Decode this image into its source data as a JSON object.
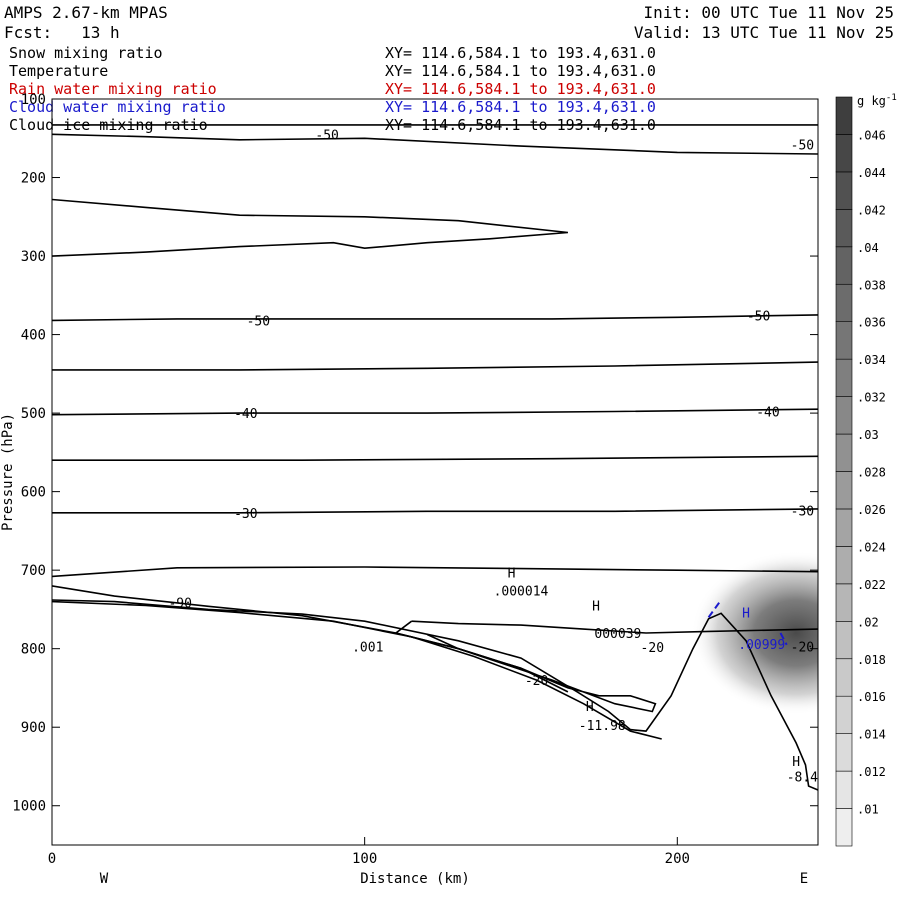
{
  "header": {
    "title": "AMPS 2.67-km MPAS",
    "forecast": "Fcst:   13 h",
    "init": "Init: 00 UTC Tue 11 Nov 25",
    "valid": "Valid: 13 UTC Tue 11 Nov 25"
  },
  "legend": [
    {
      "label": "Snow mixing ratio",
      "xy": "XY= 114.6,584.1 to 193.4,631.0",
      "color": "#000000"
    },
    {
      "label": "Temperature",
      "xy": "XY= 114.6,584.1 to 193.4,631.0",
      "color": "#000000"
    },
    {
      "label": "Rain water mixing ratio",
      "xy": "XY= 114.6,584.1 to 193.4,631.0",
      "color": "#cc0000"
    },
    {
      "label": "Cloud water mixing ratio",
      "xy": "XY= 114.6,584.1 to 193.4,631.0",
      "color": "#1a1acc"
    },
    {
      "label": "Cloud ice mixing ratio",
      "xy": "XY= 114.6,584.1 to 193.4,631.0",
      "color": "#000000"
    }
  ],
  "chart_data": {
    "type": "contour",
    "xlabel": "Distance (km)",
    "ylabel": "Pressure (hPa)",
    "xlim": [
      0,
      245
    ],
    "ylim": [
      1050,
      100
    ],
    "x_ticks": [
      0,
      100,
      200
    ],
    "y_ticks": [
      100,
      200,
      300,
      400,
      500,
      600,
      700,
      800,
      900,
      1000
    ],
    "x_end_labels": {
      "left": "W",
      "right": "E"
    },
    "colorbar": {
      "unit": "g kg",
      "unit_exp": "-1",
      "ticks": [
        ".01",
        ".012",
        ".014",
        ".016",
        ".018",
        ".02",
        ".022",
        ".024",
        ".026",
        ".028",
        ".03",
        ".032",
        ".034",
        ".036",
        ".038",
        ".04",
        ".042",
        ".044",
        ".046"
      ],
      "min": 0.009,
      "max": 0.048
    },
    "contour_labels": [
      {
        "text": "-50",
        "x": 88,
        "p": 145
      },
      {
        "text": "-50",
        "x": 240,
        "p": 158
      },
      {
        "text": "-50",
        "x": 66,
        "p": 382
      },
      {
        "text": "-50",
        "x": 226,
        "p": 376
      },
      {
        "text": "-40",
        "x": 62,
        "p": 500
      },
      {
        "text": "-40",
        "x": 229,
        "p": 498
      },
      {
        "text": "-30",
        "x": 62,
        "p": 627
      },
      {
        "text": "-30",
        "x": 240,
        "p": 624
      },
      {
        "text": "-90",
        "x": 41,
        "p": 741
      },
      {
        "text": ".001",
        "x": 101,
        "p": 797
      },
      {
        "text": "-20",
        "x": 192,
        "p": 798
      },
      {
        "text": "-20",
        "x": 155,
        "p": 840
      },
      {
        "text": "-20",
        "x": 240,
        "p": 797
      },
      {
        "text": "H",
        "x": 147,
        "p": 703,
        "color": "#000000"
      },
      {
        "text": ".000014",
        "x": 150,
        "p": 726,
        "color": "#000000"
      },
      {
        "text": "H",
        "x": 174,
        "p": 745,
        "color": "#000000"
      },
      {
        "text": "000039",
        "x": 181,
        "p": 780,
        "color": "#000000"
      },
      {
        "text": "H",
        "x": 222,
        "p": 754,
        "color": "#1a1acc"
      },
      {
        "text": ".00999",
        "x": 227,
        "p": 794,
        "color": "#1a1acc"
      },
      {
        "text": "H",
        "x": 172,
        "p": 873,
        "color": "#000000"
      },
      {
        "text": "-11.98",
        "x": 176,
        "p": 897,
        "color": "#000000"
      },
      {
        "text": "H",
        "x": 238,
        "p": 943,
        "color": "#000000"
      },
      {
        "text": "-8.4",
        "x": 240,
        "p": 963,
        "color": "#000000"
      }
    ],
    "series": [
      {
        "points": [
          [
            0,
            145
          ],
          [
            30,
            148
          ],
          [
            60,
            152
          ],
          [
            100,
            150
          ],
          [
            150,
            160
          ],
          [
            200,
            168
          ],
          [
            245,
            170
          ]
        ]
      },
      {
        "points": [
          [
            0,
            133
          ],
          [
            80,
            133
          ],
          [
            160,
            133
          ],
          [
            245,
            133
          ]
        ]
      },
      {
        "points": [
          [
            0,
            228
          ],
          [
            30,
            238
          ],
          [
            60,
            248
          ],
          [
            100,
            250
          ],
          [
            130,
            255
          ],
          [
            165,
            270
          ],
          [
            140,
            278
          ],
          [
            120,
            283
          ],
          [
            100,
            290
          ],
          [
            90,
            283
          ],
          [
            60,
            288
          ],
          [
            30,
            295
          ],
          [
            0,
            300
          ]
        ]
      },
      {
        "points": [
          [
            0,
            382
          ],
          [
            40,
            380
          ],
          [
            80,
            380
          ],
          [
            120,
            380
          ],
          [
            160,
            380
          ],
          [
            200,
            378
          ],
          [
            245,
            375
          ]
        ]
      },
      {
        "points": [
          [
            0,
            445
          ],
          [
            60,
            445
          ],
          [
            120,
            443
          ],
          [
            180,
            440
          ],
          [
            245,
            435
          ]
        ]
      },
      {
        "points": [
          [
            0,
            502
          ],
          [
            60,
            500
          ],
          [
            120,
            500
          ],
          [
            180,
            498
          ],
          [
            245,
            495
          ]
        ]
      },
      {
        "points": [
          [
            0,
            560
          ],
          [
            80,
            560
          ],
          [
            160,
            558
          ],
          [
            245,
            555
          ]
        ]
      },
      {
        "points": [
          [
            0,
            627
          ],
          [
            60,
            627
          ],
          [
            120,
            625
          ],
          [
            180,
            625
          ],
          [
            245,
            622
          ]
        ]
      },
      {
        "points": [
          [
            0,
            708
          ],
          [
            40,
            697
          ],
          [
            100,
            696
          ],
          [
            150,
            698
          ],
          [
            200,
            700
          ],
          [
            245,
            702
          ]
        ]
      },
      {
        "points": [
          [
            0,
            738
          ],
          [
            20,
            740
          ],
          [
            50,
            750
          ],
          [
            80,
            756
          ],
          [
            100,
            765
          ],
          [
            130,
            790
          ],
          [
            150,
            812
          ],
          [
            168,
            855
          ],
          [
            178,
            880
          ],
          [
            185,
            903
          ],
          [
            190,
            905
          ],
          [
            198,
            860
          ],
          [
            205,
            800
          ],
          [
            210,
            762
          ],
          [
            214,
            755
          ],
          [
            222,
            790
          ],
          [
            230,
            860
          ],
          [
            238,
            920
          ],
          [
            241,
            948
          ],
          [
            242,
            975
          ],
          [
            245,
            980
          ]
        ]
      },
      {
        "points": [
          [
            0,
            740
          ],
          [
            30,
            745
          ],
          [
            60,
            754
          ],
          [
            90,
            765
          ],
          [
            115,
            785
          ],
          [
            135,
            810
          ],
          [
            155,
            840
          ],
          [
            170,
            870
          ],
          [
            185,
            905
          ],
          [
            195,
            915
          ]
        ]
      },
      {
        "points": [
          [
            0,
            720
          ],
          [
            20,
            733
          ],
          [
            50,
            746
          ],
          [
            80,
            758
          ],
          [
            110,
            780
          ],
          [
            130,
            800
          ],
          [
            150,
            825
          ],
          [
            165,
            855
          ]
        ]
      },
      {
        "points": [
          [
            115,
            765
          ],
          [
            130,
            768
          ],
          [
            150,
            770
          ],
          [
            170,
            775
          ],
          [
            190,
            780
          ],
          [
            210,
            778
          ],
          [
            245,
            775
          ]
        ]
      },
      {
        "points": [
          [
            115,
            765
          ],
          [
            110,
            780
          ],
          [
            130,
            800
          ],
          [
            160,
            840
          ],
          [
            180,
            870
          ],
          [
            192,
            880
          ],
          [
            193,
            870
          ],
          [
            185,
            860
          ],
          [
            175,
            860
          ],
          [
            165,
            850
          ],
          [
            150,
            825
          ],
          [
            130,
            800
          ],
          [
            120,
            782
          ]
        ]
      },
      {
        "points": [
          [
            210,
            760
          ],
          [
            214,
            738
          ]
        ],
        "color": "#1a1acc",
        "dash": true
      },
      {
        "points": [
          [
            233,
            780
          ],
          [
            235,
            795
          ]
        ],
        "color": "#1a1acc",
        "dash": true
      }
    ],
    "shaded_blob": {
      "x": 238,
      "p": 780,
      "value": 0.025
    }
  }
}
